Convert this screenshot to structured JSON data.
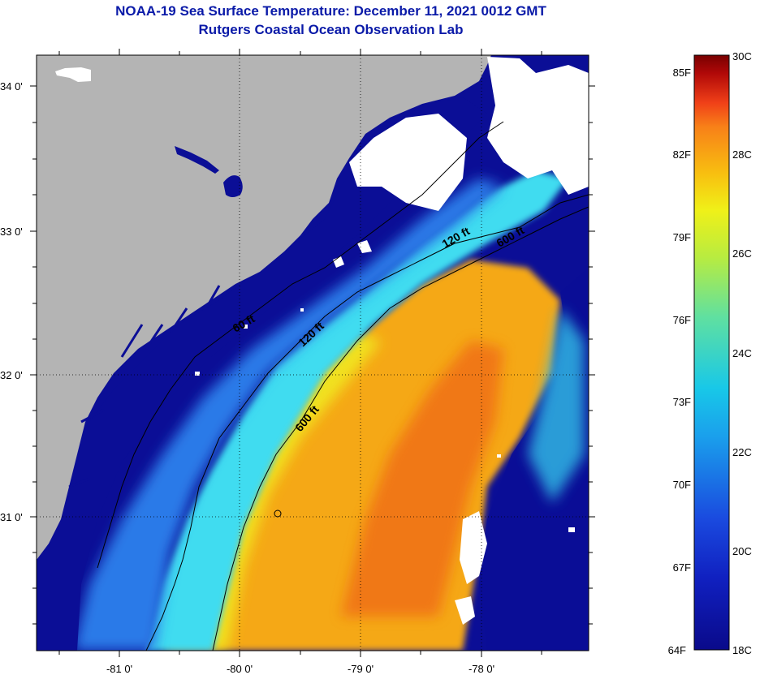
{
  "title": {
    "line1": "NOAA-19 Sea Surface Temperature:  December 11, 2021 0012 GMT",
    "line2": "Rutgers Coastal Ocean Observation Lab"
  },
  "axes": {
    "lat_labels": [
      {
        "text": "34 0'",
        "lat": 34.0
      },
      {
        "text": "33 0'",
        "lat": 33.0
      },
      {
        "text": "32 0'",
        "lat": 32.0
      },
      {
        "text": "31 0'",
        "lat": 31.0
      }
    ],
    "lon_labels": [
      {
        "text": "-81 0'",
        "lon": -81.0
      },
      {
        "text": "-80 0'",
        "lon": -80.0
      },
      {
        "text": "-79 0'",
        "lon": -79.0
      },
      {
        "text": "-78 0'",
        "lon": -78.0
      }
    ]
  },
  "contour_labels": {
    "c60": "60 ft",
    "c120a": "120 ft",
    "c120b": "120 ft",
    "c600a": "600 ft",
    "c600b": "600 ft"
  },
  "colorbar": {
    "fahrenheit": [
      "85F",
      "82F",
      "79F",
      "76F",
      "73F",
      "70F",
      "67F",
      "64F"
    ],
    "celsius": [
      "30C",
      "28C",
      "26C",
      "24C",
      "22C",
      "20C",
      "18C"
    ],
    "colors": {
      "c18": "#0a0a8a",
      "c20": "#1a4adf",
      "c22": "#18c8e8",
      "c24": "#8ee878",
      "c25": "#f0f018",
      "c26": "#f8b810",
      "c28": "#f04018",
      "c30": "#780000"
    }
  },
  "colors": {
    "land": "#b4b4b4",
    "cloud": "#ffffff",
    "coastal_water": "#0b0e96",
    "shelf_mid": "#2a7ae8",
    "shelf_outer": "#40dcf0",
    "gulfstream_edge": "#f0f020",
    "gulfstream": "#f5a818",
    "gulfstream_core": "#f07018",
    "title_text": "#0a1aa8"
  }
}
